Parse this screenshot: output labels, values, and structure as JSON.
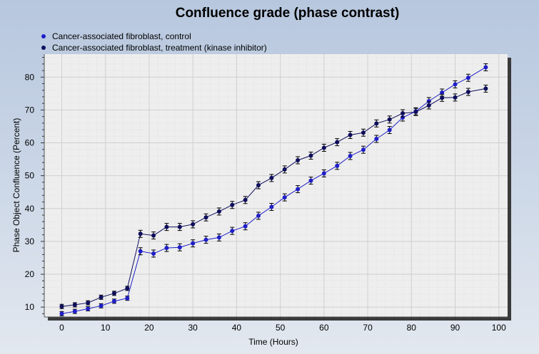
{
  "chart_data": {
    "type": "line",
    "title": "Confluence grade (phase contrast)",
    "xlabel": "Time (Hours)",
    "ylabel": "Phase Object Confluence (Percent)",
    "xlim": [
      -4,
      102
    ],
    "ylim": [
      7,
      87
    ],
    "xticks": [
      0,
      10,
      20,
      30,
      40,
      50,
      60,
      70,
      80,
      90,
      100
    ],
    "yticks": [
      10,
      20,
      30,
      40,
      50,
      60,
      70,
      80
    ],
    "grid": true,
    "legend_position": "top-left",
    "series": [
      {
        "name": "Cancer-associated fibroblast, control",
        "color": "#1e1ec8",
        "x": [
          0,
          3,
          6,
          9,
          12,
          15,
          18,
          21,
          24,
          27,
          30,
          33,
          36,
          39,
          42,
          45,
          48,
          51,
          54,
          57,
          60,
          63,
          66,
          69,
          72,
          75,
          78,
          81,
          84,
          87,
          90,
          93,
          97
        ],
        "y": [
          8,
          8.7,
          9.5,
          10.4,
          11.8,
          12.7,
          27,
          26.3,
          28,
          28.2,
          29.4,
          30.5,
          31.2,
          33.2,
          34.6,
          37.8,
          40.5,
          43.4,
          45.9,
          48.5,
          50.7,
          53,
          56,
          57.9,
          61.2,
          63.9,
          67.7,
          69.6,
          72.7,
          75.3,
          77.8,
          79.8,
          83
        ]
      },
      {
        "name": "Cancer-associated fibroblast, treatment (kinase inhibitor)",
        "color": "#0e0e5c",
        "x": [
          0,
          3,
          6,
          9,
          12,
          15,
          18,
          21,
          24,
          27,
          30,
          33,
          36,
          39,
          42,
          45,
          48,
          51,
          54,
          57,
          60,
          63,
          66,
          69,
          72,
          75,
          78,
          81,
          84,
          87,
          90,
          93,
          97
        ],
        "y": [
          10.2,
          10.7,
          11.3,
          13,
          14.2,
          15.7,
          32.3,
          31.8,
          34.4,
          34.4,
          35.2,
          37.3,
          39.1,
          41.1,
          42.6,
          47.1,
          49.3,
          51.9,
          54.7,
          56.1,
          58.5,
          60.2,
          62.4,
          63.1,
          65.9,
          67.1,
          69,
          69.4,
          71.4,
          73.7,
          73.8,
          75.5,
          76.5
        ]
      }
    ]
  }
}
